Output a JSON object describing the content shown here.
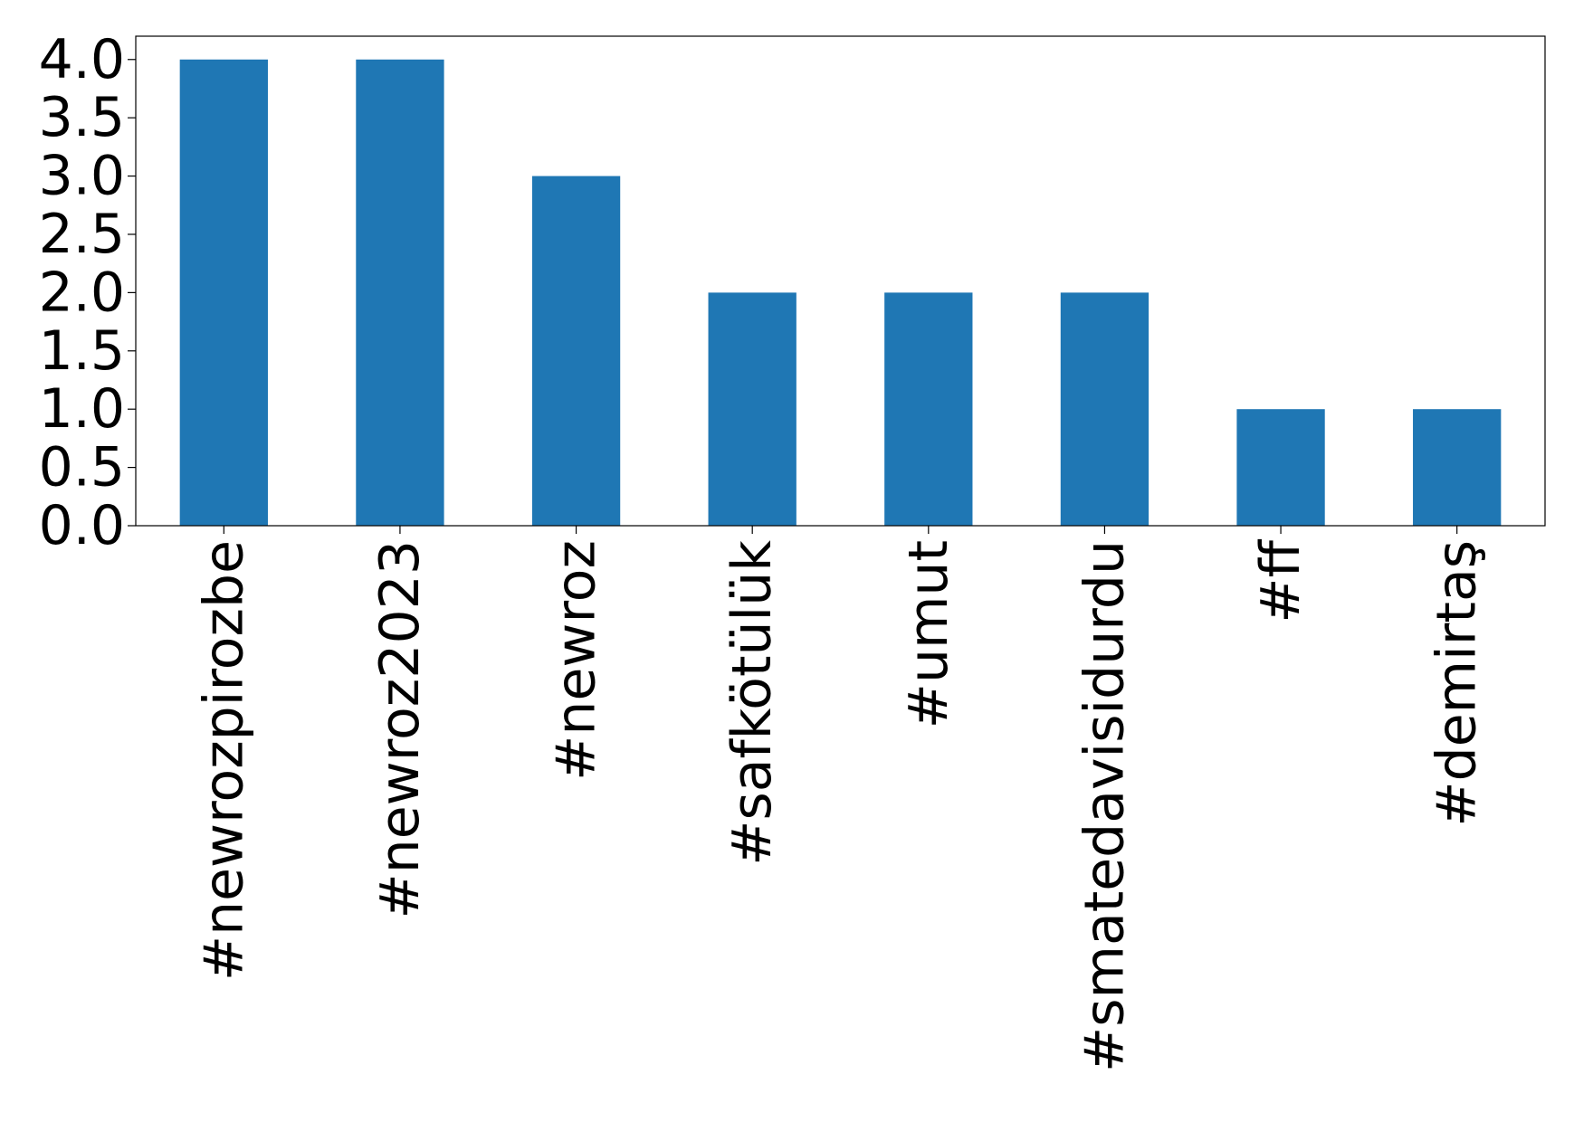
{
  "chart_data": {
    "type": "bar",
    "title": "",
    "xlabel": "",
    "ylabel": "",
    "categories": [
      "#newrozpirozbe",
      "#newroz2023",
      "#newroz",
      "#safkötülük",
      "#umut",
      "#smatedavisidurdu",
      "#ff",
      "#demirtaş"
    ],
    "values": [
      4,
      4,
      3,
      2,
      2,
      2,
      1,
      1
    ],
    "ylim": [
      0,
      4.2
    ],
    "yticks": [
      "0.0",
      "0.5",
      "1.0",
      "1.5",
      "2.0",
      "2.5",
      "3.0",
      "3.5",
      "4.0"
    ],
    "bar_color": "#1f77b4",
    "grid": false,
    "legend": "none"
  }
}
